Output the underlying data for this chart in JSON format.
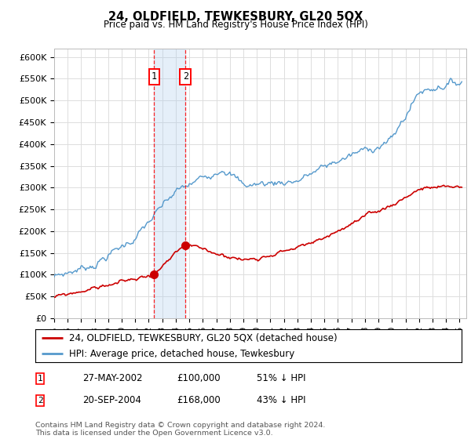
{
  "title": "24, OLDFIELD, TEWKESBURY, GL20 5QX",
  "subtitle": "Price paid vs. HM Land Registry's House Price Index (HPI)",
  "ylim": [
    0,
    620000
  ],
  "yticks": [
    0,
    50000,
    100000,
    150000,
    200000,
    250000,
    300000,
    350000,
    400000,
    450000,
    500000,
    550000,
    600000
  ],
  "ytick_labels": [
    "£0",
    "£50K",
    "£100K",
    "£150K",
    "£200K",
    "£250K",
    "£300K",
    "£350K",
    "£400K",
    "£450K",
    "£500K",
    "£550K",
    "£600K"
  ],
  "xlim_start": 1995.0,
  "xlim_end": 2025.5,
  "xtick_years": [
    1995,
    1996,
    1997,
    1998,
    1999,
    2000,
    2001,
    2002,
    2003,
    2004,
    2005,
    2006,
    2007,
    2008,
    2009,
    2010,
    2011,
    2012,
    2013,
    2014,
    2015,
    2016,
    2017,
    2018,
    2019,
    2020,
    2021,
    2022,
    2023,
    2024,
    2025
  ],
  "red_line_color": "#cc0000",
  "blue_line_color": "#5599cc",
  "transaction1_date": 2002.4,
  "transaction1_price": 100000,
  "transaction2_date": 2004.72,
  "transaction2_price": 168000,
  "transaction1_label": "1",
  "transaction2_label": "2",
  "shade_color": "#aaccee",
  "shade_alpha": 0.3,
  "legend_line1": "24, OLDFIELD, TEWKESBURY, GL20 5QX (detached house)",
  "legend_line2": "HPI: Average price, detached house, Tewkesbury",
  "table_row1": [
    "1",
    "27-MAY-2002",
    "£100,000",
    "51% ↓ HPI"
  ],
  "table_row2": [
    "2",
    "20-SEP-2004",
    "£168,000",
    "43% ↓ HPI"
  ],
  "footnote": "Contains HM Land Registry data © Crown copyright and database right 2024.\nThis data is licensed under the Open Government Licence v3.0.",
  "background_color": "#ffffff",
  "grid_color": "#dddddd"
}
